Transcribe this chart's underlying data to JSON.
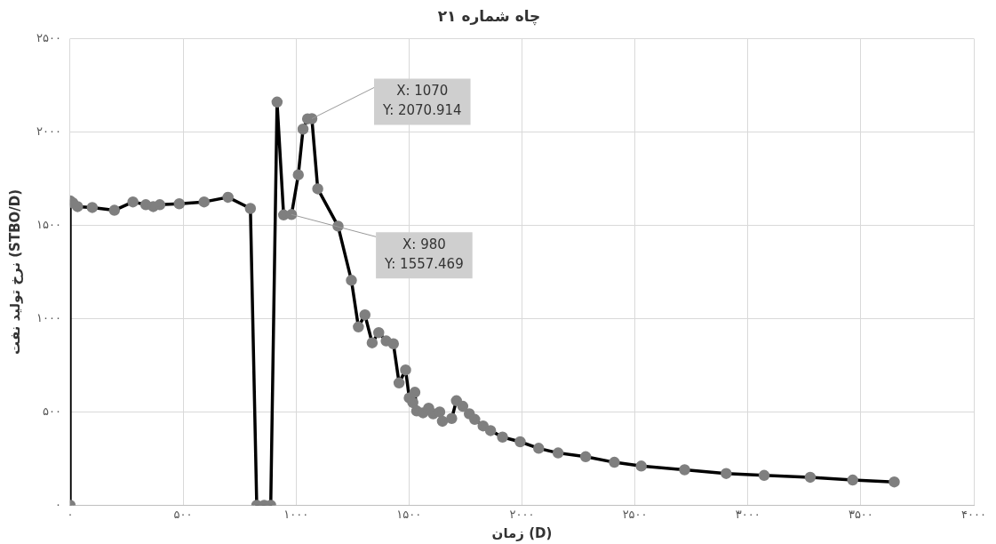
{
  "chart_data": {
    "type": "line",
    "title": "چاه شماره ۲۱",
    "xlabel": "زمان (D)",
    "ylabel": "نرخ تولید نفت (STBO/D)",
    "xlim": [
      0,
      4000
    ],
    "xticks": [
      {
        "value": 0,
        "label": "۰"
      },
      {
        "value": 500,
        "label": "۵۰۰"
      },
      {
        "value": 1000,
        "label": "۱۰۰۰"
      },
      {
        "value": 1500,
        "label": "۱۵۰۰"
      },
      {
        "value": 2000,
        "label": "۲۰۰۰"
      },
      {
        "value": 2500,
        "label": "۲۵۰۰"
      },
      {
        "value": 3000,
        "label": "۳۰۰۰"
      },
      {
        "value": 3500,
        "label": "۳۵۰۰"
      },
      {
        "value": 4000,
        "label": "۴۰۰۰"
      }
    ],
    "ylim": [
      0,
      2500
    ],
    "yticks": [
      {
        "value": 0,
        "label": "۰"
      },
      {
        "value": 500,
        "label": "۵۰۰"
      },
      {
        "value": 1000,
        "label": "۱۰۰۰"
      },
      {
        "value": 1500,
        "label": "۱۵۰۰"
      },
      {
        "value": 2000,
        "label": "۲۰۰۰"
      },
      {
        "value": 2500,
        "label": "۲۵۰۰"
      }
    ],
    "grid": true,
    "legend": false,
    "marker": "circle",
    "line_style": "solid",
    "x": [
      0,
      0,
      12,
      33,
      98,
      196,
      278,
      335,
      368,
      397,
      483,
      593,
      699,
      798,
      826,
      859,
      888,
      916,
      945,
      980,
      1010,
      1031,
      1051,
      1070,
      1096,
      1186,
      1245,
      1276,
      1305,
      1337,
      1366,
      1399,
      1431,
      1456,
      1485,
      1501,
      1517,
      1526,
      1534,
      1562,
      1587,
      1607,
      1636,
      1648,
      1689,
      1710,
      1738,
      1767,
      1791,
      1828,
      1861,
      1914,
      1992,
      2074,
      2160,
      2282,
      2409,
      2528,
      2720,
      2904,
      3072,
      3276,
      3464,
      3648
    ],
    "series": [
      {
        "color": "#000000",
        "values": [
          0,
          1631,
          1620,
          1600,
          1595,
          1580,
          1625,
          1610,
          1600,
          1610,
          1615,
          1625,
          1650,
          1590,
          0,
          0,
          0,
          2160,
          1555,
          1557.469,
          1770,
          2015,
          2070,
          2070.914,
          1695,
          1495,
          1205,
          955,
          1020,
          870,
          925,
          880,
          865,
          655,
          725,
          575,
          550,
          605,
          505,
          495,
          520,
          490,
          500,
          450,
          465,
          560,
          530,
          490,
          460,
          425,
          400,
          365,
          340,
          305,
          280,
          260,
          230,
          210,
          190,
          170,
          160,
          150,
          135,
          125
        ]
      }
    ],
    "annotations": [
      {
        "text": "X: 1070\nY: 2070.914",
        "x": 1070,
        "y": 2070.914
      },
      {
        "text": "X: 980\nY: 1557.469",
        "x": 980,
        "y": 1557.469
      }
    ]
  }
}
